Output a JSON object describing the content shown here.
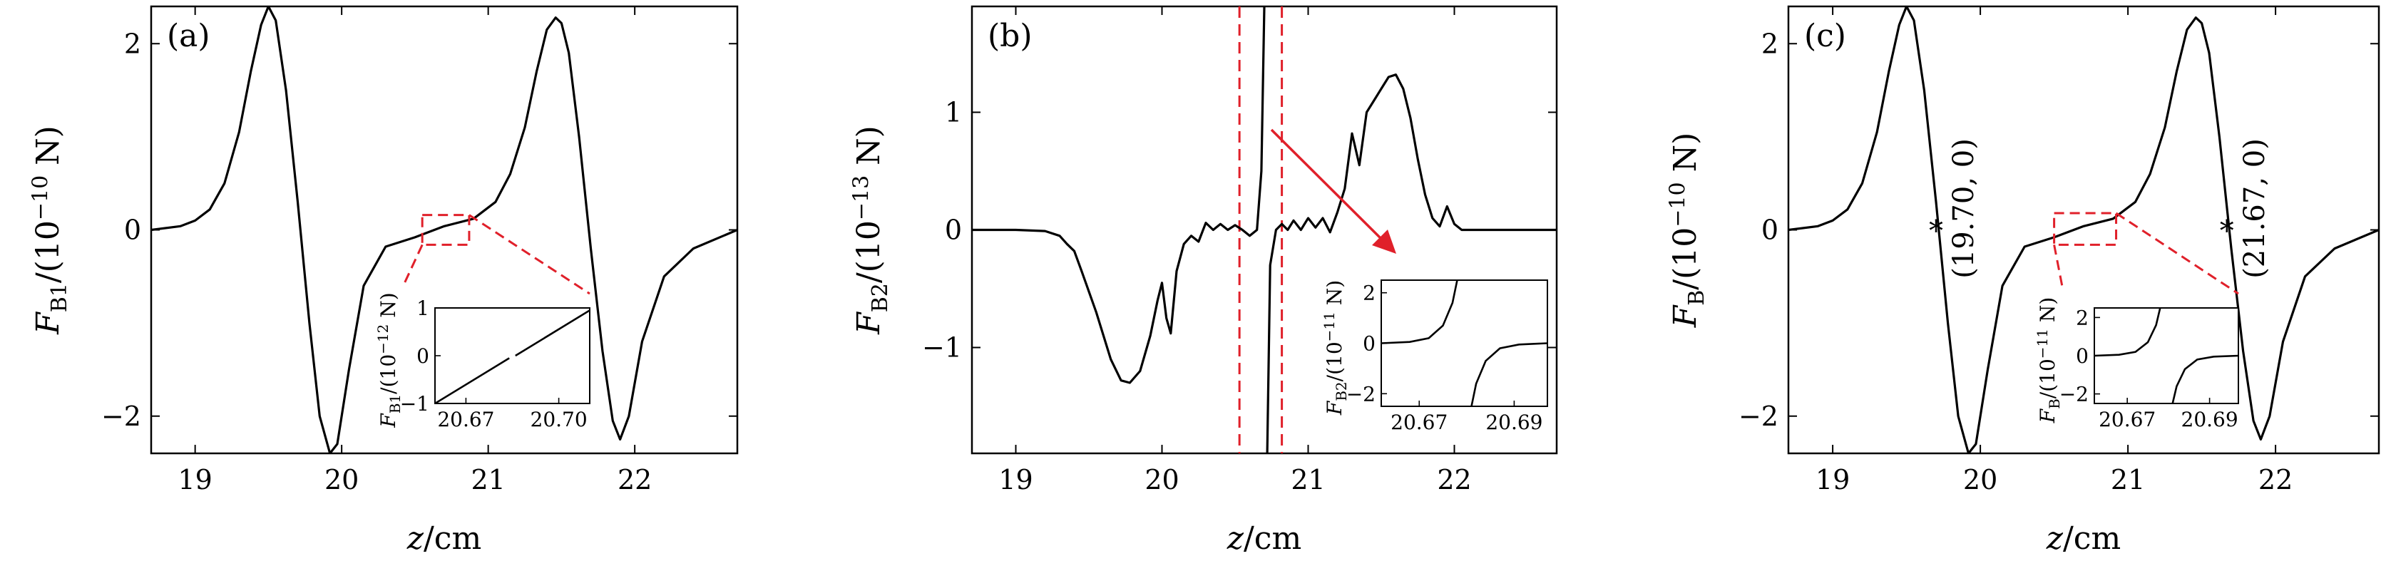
{
  "chart_data": [
    {
      "panel": "(a)",
      "type": "line",
      "xlabel": "z/cm",
      "ylabel": "F_B1/(10^-10 N)",
      "ylabel_parts": {
        "sym": "F",
        "sub": "B1",
        "pre": "/(10",
        "exp": "−10",
        "post": " N)"
      },
      "xlim": [
        18.7,
        22.7
      ],
      "ylim": [
        -2.4,
        2.4
      ],
      "xticks": [
        19,
        20,
        21,
        22
      ],
      "yticks": [
        2,
        0,
        -2
      ],
      "ytick_labels": [
        "2",
        "0",
        "−2"
      ],
      "series": [
        {
          "x": [
            18.7,
            18.9,
            19.0,
            19.1,
            19.2,
            19.3,
            19.38,
            19.45,
            19.5,
            19.55,
            19.62,
            19.7,
            19.78,
            19.85,
            19.92,
            19.97,
            20.05,
            20.15,
            20.3,
            20.5,
            20.7,
            20.9,
            21.05,
            21.15,
            21.25,
            21.33,
            21.4,
            21.46,
            21.5,
            21.55,
            21.62,
            21.7,
            21.78,
            21.85,
            21.9,
            21.96,
            22.05,
            22.2,
            22.4,
            22.7
          ],
          "y": [
            0,
            0.04,
            0.1,
            0.22,
            0.5,
            1.05,
            1.7,
            2.2,
            2.4,
            2.25,
            1.5,
            0.3,
            -1.0,
            -2.0,
            -2.4,
            -2.3,
            -1.5,
            -0.6,
            -0.18,
            -0.08,
            0.04,
            0.12,
            0.3,
            0.6,
            1.1,
            1.7,
            2.15,
            2.28,
            2.22,
            1.9,
            1.0,
            -0.2,
            -1.3,
            -2.05,
            -2.25,
            -2.0,
            -1.2,
            -0.5,
            -0.2,
            0
          ]
        }
      ],
      "zoom_box": {
        "x": [
          20.55,
          20.87
        ],
        "y": [
          -0.16,
          0.16
        ]
      },
      "inset": {
        "ylabel_parts": {
          "sym": "F",
          "sub": "B1",
          "pre": "/(10",
          "exp": "−12",
          "post": " N)"
        },
        "xlim": [
          20.66,
          20.71
        ],
        "ylim": [
          -1,
          1
        ],
        "xticks": [
          20.67,
          20.7
        ],
        "xtick_labels": [
          "20.67",
          "20.70"
        ],
        "yticks": [
          1,
          0,
          -1
        ],
        "ytick_labels": [
          "1",
          "0",
          "−1"
        ],
        "series": [
          {
            "x": [
              20.66,
              20.684
            ],
            "y": [
              -1.0,
              -0.05
            ]
          },
          {
            "x": [
              20.686,
              20.71
            ],
            "y": [
              0.0,
              0.95
            ]
          }
        ]
      }
    },
    {
      "panel": "(b)",
      "type": "line",
      "xlabel": "z/cm",
      "ylabel": "F_B2/(10^-13 N)",
      "ylabel_parts": {
        "sym": "F",
        "sub": "B2",
        "pre": "/(10",
        "exp": "−13",
        "post": " N)"
      },
      "xlim": [
        18.7,
        22.7
      ],
      "ylim": [
        -1.9,
        1.9
      ],
      "xticks": [
        19,
        20,
        21,
        22
      ],
      "yticks": [
        1,
        0,
        -1
      ],
      "ytick_labels": [
        "1",
        "0",
        "−1"
      ],
      "series": [
        {
          "x": [
            18.7,
            19.0,
            19.2,
            19.3,
            19.35,
            19.4,
            19.45,
            19.55,
            19.65,
            19.72,
            19.78,
            19.85,
            19.92,
            19.97,
            20.0,
            20.03,
            20.06,
            20.1,
            20.15,
            20.2,
            20.25,
            20.3,
            20.35,
            20.4,
            20.45,
            20.5,
            20.55,
            20.6,
            20.65,
            20.68,
            20.7
          ],
          "y": [
            0,
            0,
            -0.01,
            -0.05,
            -0.12,
            -0.18,
            -0.35,
            -0.7,
            -1.1,
            -1.28,
            -1.3,
            -1.2,
            -0.9,
            -0.6,
            -0.45,
            -0.75,
            -0.88,
            -0.35,
            -0.12,
            -0.05,
            -0.1,
            0.06,
            0.0,
            0.05,
            0.0,
            0.04,
            0.0,
            -0.05,
            0.0,
            0.5,
            1.9
          ]
        },
        {
          "x": [
            20.72,
            20.74,
            20.78,
            20.82,
            20.86,
            20.9,
            20.95,
            21.0,
            21.05,
            21.1,
            21.15,
            21.2,
            21.25,
            21.3,
            21.35,
            21.4,
            21.45,
            21.5,
            21.55,
            21.6,
            21.65,
            21.7,
            21.75,
            21.8,
            21.85,
            21.9,
            21.95,
            22.0,
            22.05,
            22.2,
            22.7
          ],
          "y": [
            -1.9,
            -0.3,
            0.0,
            0.05,
            0.0,
            0.08,
            0.0,
            0.1,
            0.02,
            0.1,
            -0.02,
            0.15,
            0.35,
            0.82,
            0.55,
            1.0,
            1.1,
            1.2,
            1.3,
            1.32,
            1.2,
            0.95,
            0.6,
            0.3,
            0.1,
            0.03,
            0.2,
            0.05,
            0.0,
            0.0,
            0
          ]
        }
      ],
      "dashed_lines_x": [
        20.53,
        20.82
      ],
      "inset": {
        "ylabel_parts": {
          "sym": "F",
          "sub": "B2",
          "pre": "/(10",
          "exp": "−11",
          "post": " N)"
        },
        "xlim": [
          20.662,
          20.697
        ],
        "ylim": [
          -2.5,
          2.5
        ],
        "xticks": [
          20.67,
          20.69
        ],
        "xtick_labels": [
          "20.67",
          "20.69"
        ],
        "yticks": [
          2,
          0,
          -2
        ],
        "ytick_labels": [
          "2",
          "0",
          "−2"
        ],
        "series": [
          {
            "x": [
              20.662,
              20.668,
              20.672,
              20.675,
              20.677,
              20.678
            ],
            "y": [
              0.0,
              0.05,
              0.2,
              0.7,
              1.6,
              2.5
            ]
          },
          {
            "x": [
              20.681,
              20.682,
              20.684,
              20.687,
              20.691,
              20.697
            ],
            "y": [
              -2.5,
              -1.6,
              -0.7,
              -0.2,
              -0.05,
              0.0
            ]
          }
        ]
      }
    },
    {
      "panel": "(c)",
      "type": "line",
      "xlabel": "z/cm",
      "ylabel": "F_B/(10^-10 N)",
      "ylabel_parts": {
        "sym": "F",
        "sub": "B",
        "pre": "/(10",
        "exp": "−10",
        "post": " N)"
      },
      "xlim": [
        18.7,
        22.7
      ],
      "ylim": [
        -2.4,
        2.4
      ],
      "xticks": [
        19,
        20,
        21,
        22
      ],
      "yticks": [
        2,
        0,
        -2
      ],
      "ytick_labels": [
        "2",
        "0",
        "−2"
      ],
      "series": [
        {
          "x": [
            18.7,
            18.9,
            19.0,
            19.1,
            19.2,
            19.3,
            19.38,
            19.45,
            19.5,
            19.55,
            19.62,
            19.7,
            19.78,
            19.85,
            19.92,
            19.97,
            20.05,
            20.15,
            20.3,
            20.5,
            20.7,
            20.9,
            21.05,
            21.15,
            21.25,
            21.33,
            21.4,
            21.46,
            21.5,
            21.55,
            21.62,
            21.7,
            21.78,
            21.85,
            21.9,
            21.96,
            22.05,
            22.2,
            22.4,
            22.7
          ],
          "y": [
            0,
            0.04,
            0.1,
            0.22,
            0.5,
            1.05,
            1.7,
            2.2,
            2.4,
            2.25,
            1.5,
            0.3,
            -1.0,
            -2.0,
            -2.4,
            -2.3,
            -1.5,
            -0.6,
            -0.18,
            -0.08,
            0.04,
            0.12,
            0.3,
            0.6,
            1.1,
            1.7,
            2.15,
            2.28,
            2.22,
            1.9,
            1.0,
            -0.2,
            -1.3,
            -2.05,
            -2.25,
            -2.0,
            -1.2,
            -0.5,
            -0.2,
            0
          ]
        }
      ],
      "markers": [
        {
          "x": 19.7,
          "y": 0
        },
        {
          "x": 21.67,
          "y": 0
        }
      ],
      "annotations": [
        "(19.70, 0)",
        "(21.67, 0)"
      ],
      "zoom_box": {
        "x": [
          20.5,
          20.92
        ],
        "y": [
          -0.16,
          0.18
        ]
      },
      "inset": {
        "ylabel_parts": {
          "sym": "F",
          "sub": "B",
          "pre": "/(10",
          "exp": "−11",
          "post": " N)"
        },
        "xlim": [
          20.662,
          20.697
        ],
        "ylim": [
          -2.5,
          2.5
        ],
        "xticks": [
          20.67,
          20.69
        ],
        "xtick_labels": [
          "20.67",
          "20.69"
        ],
        "yticks": [
          2,
          0,
          -2
        ],
        "ytick_labels": [
          "2",
          "0",
          "−2"
        ],
        "series": [
          {
            "x": [
              20.662,
              20.668,
              20.672,
              20.675,
              20.677,
              20.678
            ],
            "y": [
              0.0,
              0.05,
              0.2,
              0.7,
              1.6,
              2.5
            ]
          },
          {
            "x": [
              20.681,
              20.682,
              20.684,
              20.687,
              20.691,
              20.697
            ],
            "y": [
              -2.5,
              -1.6,
              -0.7,
              -0.2,
              -0.05,
              0.0
            ]
          }
        ]
      }
    }
  ]
}
